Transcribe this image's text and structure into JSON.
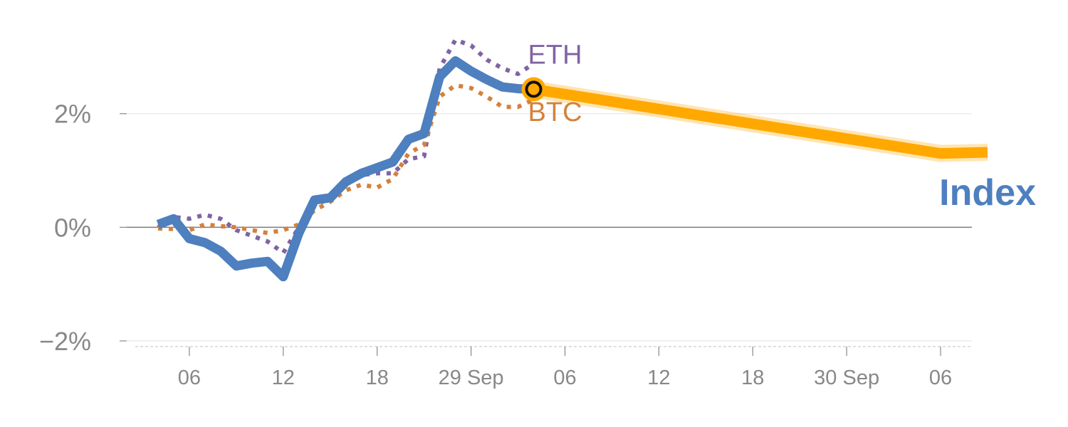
{
  "chart_data": {
    "type": "line",
    "title": "",
    "xlabel": "",
    "ylabel": "",
    "x_tick_labels": [
      "06",
      "12",
      "18",
      "29 Sep",
      "06",
      "12",
      "18",
      "30 Sep",
      "06"
    ],
    "y_ticks": [
      {
        "value": 2,
        "label": "2%"
      },
      {
        "value": 0,
        "label": "0%"
      },
      {
        "value": -2,
        "label": "−2%"
      }
    ],
    "ylim": [
      -2.1,
      3.5
    ],
    "xlim": [
      "2024-09-28T02:00",
      "2024-09-30T08:00"
    ],
    "grid": true,
    "series": [
      {
        "name": "Index",
        "color": "#4e7fbf",
        "style": "solid",
        "points": [
          [
            "2024-09-28T04:00",
            0.05
          ],
          [
            "2024-09-28T05:00",
            0.15
          ],
          [
            "2024-09-28T06:00",
            -0.2
          ],
          [
            "2024-09-28T07:00",
            -0.27
          ],
          [
            "2024-09-28T08:00",
            -0.42
          ],
          [
            "2024-09-28T09:00",
            -0.68
          ],
          [
            "2024-09-28T10:00",
            -0.63
          ],
          [
            "2024-09-28T11:00",
            -0.6
          ],
          [
            "2024-09-28T12:00",
            -0.87
          ],
          [
            "2024-09-28T13:00",
            -0.1
          ],
          [
            "2024-09-28T14:00",
            0.48
          ],
          [
            "2024-09-28T15:00",
            0.52
          ],
          [
            "2024-09-28T16:00",
            0.8
          ],
          [
            "2024-09-28T17:00",
            0.95
          ],
          [
            "2024-09-28T18:00",
            1.05
          ],
          [
            "2024-09-28T19:00",
            1.15
          ],
          [
            "2024-09-28T20:00",
            1.55
          ],
          [
            "2024-09-28T21:00",
            1.65
          ],
          [
            "2024-09-28T22:00",
            2.65
          ],
          [
            "2024-09-28T23:00",
            2.93
          ],
          [
            "2024-09-29T00:00",
            2.75
          ],
          [
            "2024-09-29T01:00",
            2.6
          ],
          [
            "2024-09-29T02:00",
            2.47
          ],
          [
            "2024-09-29T03:00",
            2.44
          ],
          [
            "2024-09-29T04:00",
            2.43
          ]
        ]
      },
      {
        "name": "ETH",
        "color": "#8064a2",
        "style": "dotted",
        "points": [
          [
            "2024-09-28T04:00",
            0.0
          ],
          [
            "2024-09-28T05:00",
            0.18
          ],
          [
            "2024-09-28T06:00",
            0.15
          ],
          [
            "2024-09-28T07:00",
            0.22
          ],
          [
            "2024-09-28T08:00",
            0.15
          ],
          [
            "2024-09-28T09:00",
            -0.05
          ],
          [
            "2024-09-28T10:00",
            -0.15
          ],
          [
            "2024-09-28T11:00",
            -0.25
          ],
          [
            "2024-09-28T12:00",
            -0.45
          ],
          [
            "2024-09-28T13:00",
            0.0
          ],
          [
            "2024-09-28T14:00",
            0.4
          ],
          [
            "2024-09-28T15:00",
            0.5
          ],
          [
            "2024-09-28T16:00",
            0.75
          ],
          [
            "2024-09-28T17:00",
            0.92
          ],
          [
            "2024-09-28T18:00",
            0.95
          ],
          [
            "2024-09-28T19:00",
            0.95
          ],
          [
            "2024-09-28T20:00",
            1.2
          ],
          [
            "2024-09-28T21:00",
            1.25
          ],
          [
            "2024-09-28T22:00",
            2.8
          ],
          [
            "2024-09-28T23:00",
            3.3
          ],
          [
            "2024-09-29T00:00",
            3.2
          ],
          [
            "2024-09-29T01:00",
            2.95
          ],
          [
            "2024-09-29T02:00",
            2.8
          ],
          [
            "2024-09-29T03:00",
            2.7
          ],
          [
            "2024-09-29T04:00",
            2.88
          ]
        ]
      },
      {
        "name": "BTC",
        "color": "#d4813c",
        "style": "dotted",
        "points": [
          [
            "2024-09-28T04:00",
            -0.02
          ],
          [
            "2024-09-28T05:00",
            -0.03
          ],
          [
            "2024-09-28T06:00",
            -0.05
          ],
          [
            "2024-09-28T07:00",
            0.05
          ],
          [
            "2024-09-28T08:00",
            0.02
          ],
          [
            "2024-09-28T09:00",
            0.0
          ],
          [
            "2024-09-28T10:00",
            -0.05
          ],
          [
            "2024-09-28T11:00",
            -0.1
          ],
          [
            "2024-09-28T12:00",
            -0.05
          ],
          [
            "2024-09-28T13:00",
            0.05
          ],
          [
            "2024-09-28T14:00",
            0.3
          ],
          [
            "2024-09-28T15:00",
            0.45
          ],
          [
            "2024-09-28T16:00",
            0.65
          ],
          [
            "2024-09-28T17:00",
            0.75
          ],
          [
            "2024-09-28T18:00",
            0.7
          ],
          [
            "2024-09-28T19:00",
            0.85
          ],
          [
            "2024-09-28T20:00",
            1.3
          ],
          [
            "2024-09-28T21:00",
            1.45
          ],
          [
            "2024-09-28T22:00",
            2.3
          ],
          [
            "2024-09-28T23:00",
            2.5
          ],
          [
            "2024-09-29T00:00",
            2.45
          ],
          [
            "2024-09-29T01:00",
            2.3
          ],
          [
            "2024-09-29T02:00",
            2.12
          ],
          [
            "2024-09-29T03:00",
            2.12
          ],
          [
            "2024-09-29T04:00",
            2.25
          ]
        ]
      },
      {
        "name": "",
        "color": "#ffa800",
        "style": "projection",
        "points": [
          [
            "2024-09-29T04:00",
            2.43
          ],
          [
            "2024-09-30T06:00",
            1.3
          ],
          [
            "2024-09-30T09:00",
            1.32
          ]
        ]
      }
    ],
    "marker": {
      "x": "2024-09-29T04:00",
      "y": 2.43,
      "color": "#ffa800"
    }
  }
}
